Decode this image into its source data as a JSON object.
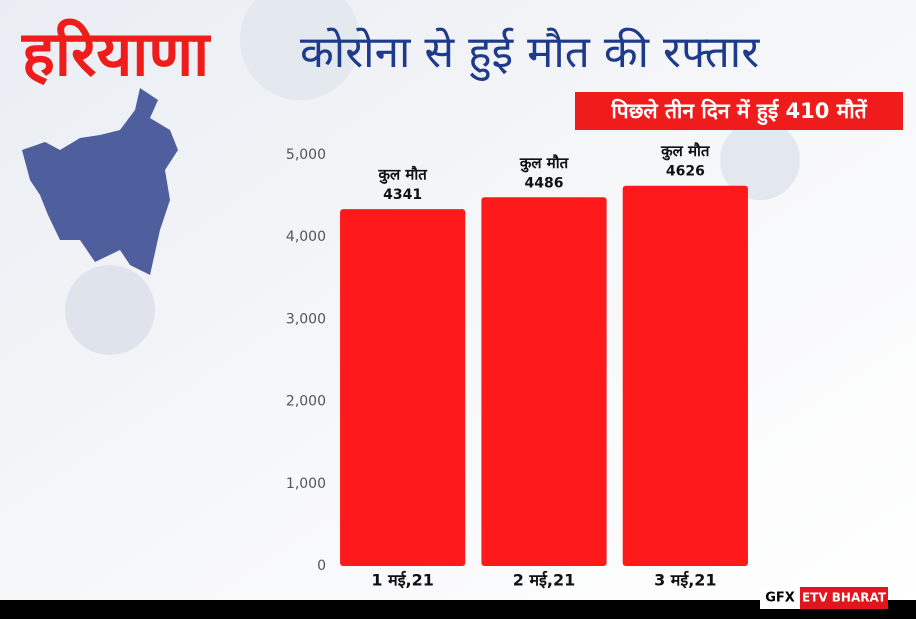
{
  "chart_data": {
    "type": "bar",
    "title": "हरियाणा",
    "subtitle": "कोरोना से हुई मौत की रफ्तार",
    "annotation": "पिछले तीन दिन में हुई 410 मौतें",
    "bar_label": "कुल मौत",
    "categories": [
      "1 मई,21",
      "2 मई,21",
      "3 मई,21"
    ],
    "values": [
      4341,
      4486,
      4626
    ],
    "color": "#fe1a1a",
    "ylim": [
      0,
      5000
    ],
    "yticks": [
      0,
      {
        "value": 1000,
        "label": "1,000"
      },
      {
        "value": 2000,
        "label": "2,000"
      },
      {
        "value": 3000,
        "label": "3,000"
      },
      {
        "value": 4000,
        "label": "4,000"
      },
      {
        "value": 5000,
        "label": "5,000"
      }
    ],
    "grid": false
  },
  "footer": {
    "gfx": "GFX",
    "brand": "ETV BHARAT"
  }
}
